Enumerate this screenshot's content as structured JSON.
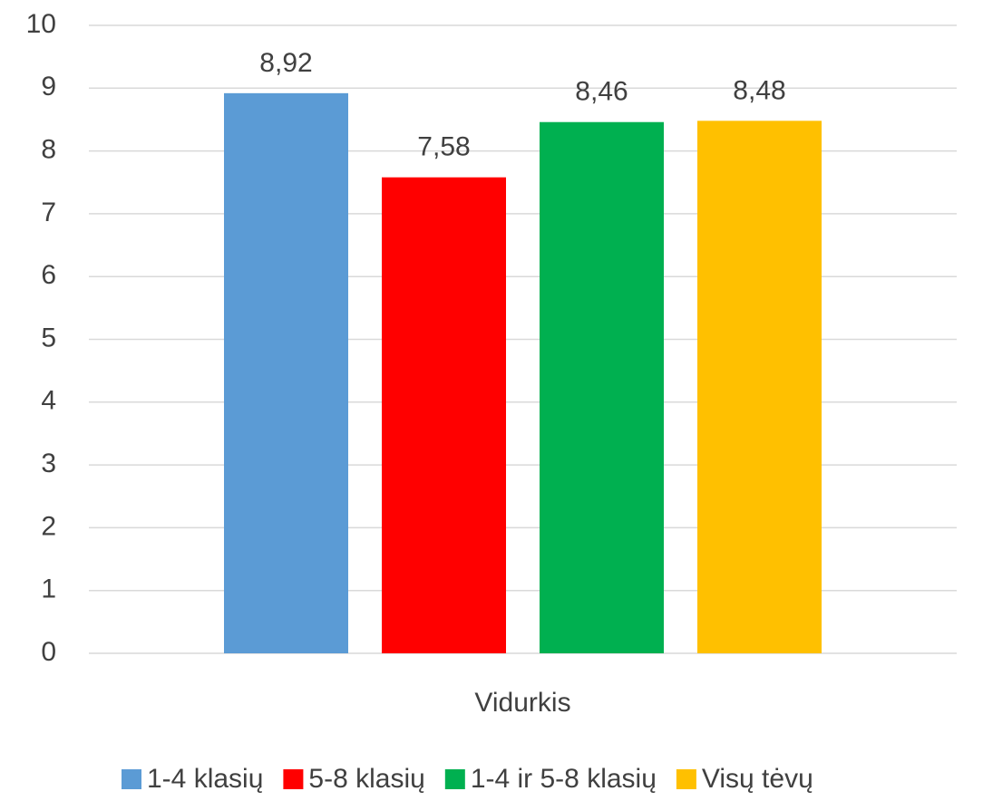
{
  "chart_data": {
    "type": "bar",
    "categories": [
      "Vidurkis"
    ],
    "series": [
      {
        "name": "1-4 klasių",
        "color": "#5b9bd5",
        "values": [
          8.92
        ],
        "value_labels": [
          "8,92"
        ]
      },
      {
        "name": "5-8 klasių",
        "color": "#ff0000",
        "values": [
          7.58
        ],
        "value_labels": [
          "7,58"
        ]
      },
      {
        "name": "1-4 ir 5-8 klasių",
        "color": "#00b050",
        "values": [
          8.46
        ],
        "value_labels": [
          "8,46"
        ]
      },
      {
        "name": "Visų tėvų",
        "color": "#ffc000",
        "values": [
          8.48
        ],
        "value_labels": [
          "8,48"
        ]
      }
    ],
    "ylim": [
      0,
      10
    ],
    "yticks": [
      0,
      1,
      2,
      3,
      4,
      5,
      6,
      7,
      8,
      9,
      10
    ],
    "grid": true,
    "legend": "bottom"
  }
}
